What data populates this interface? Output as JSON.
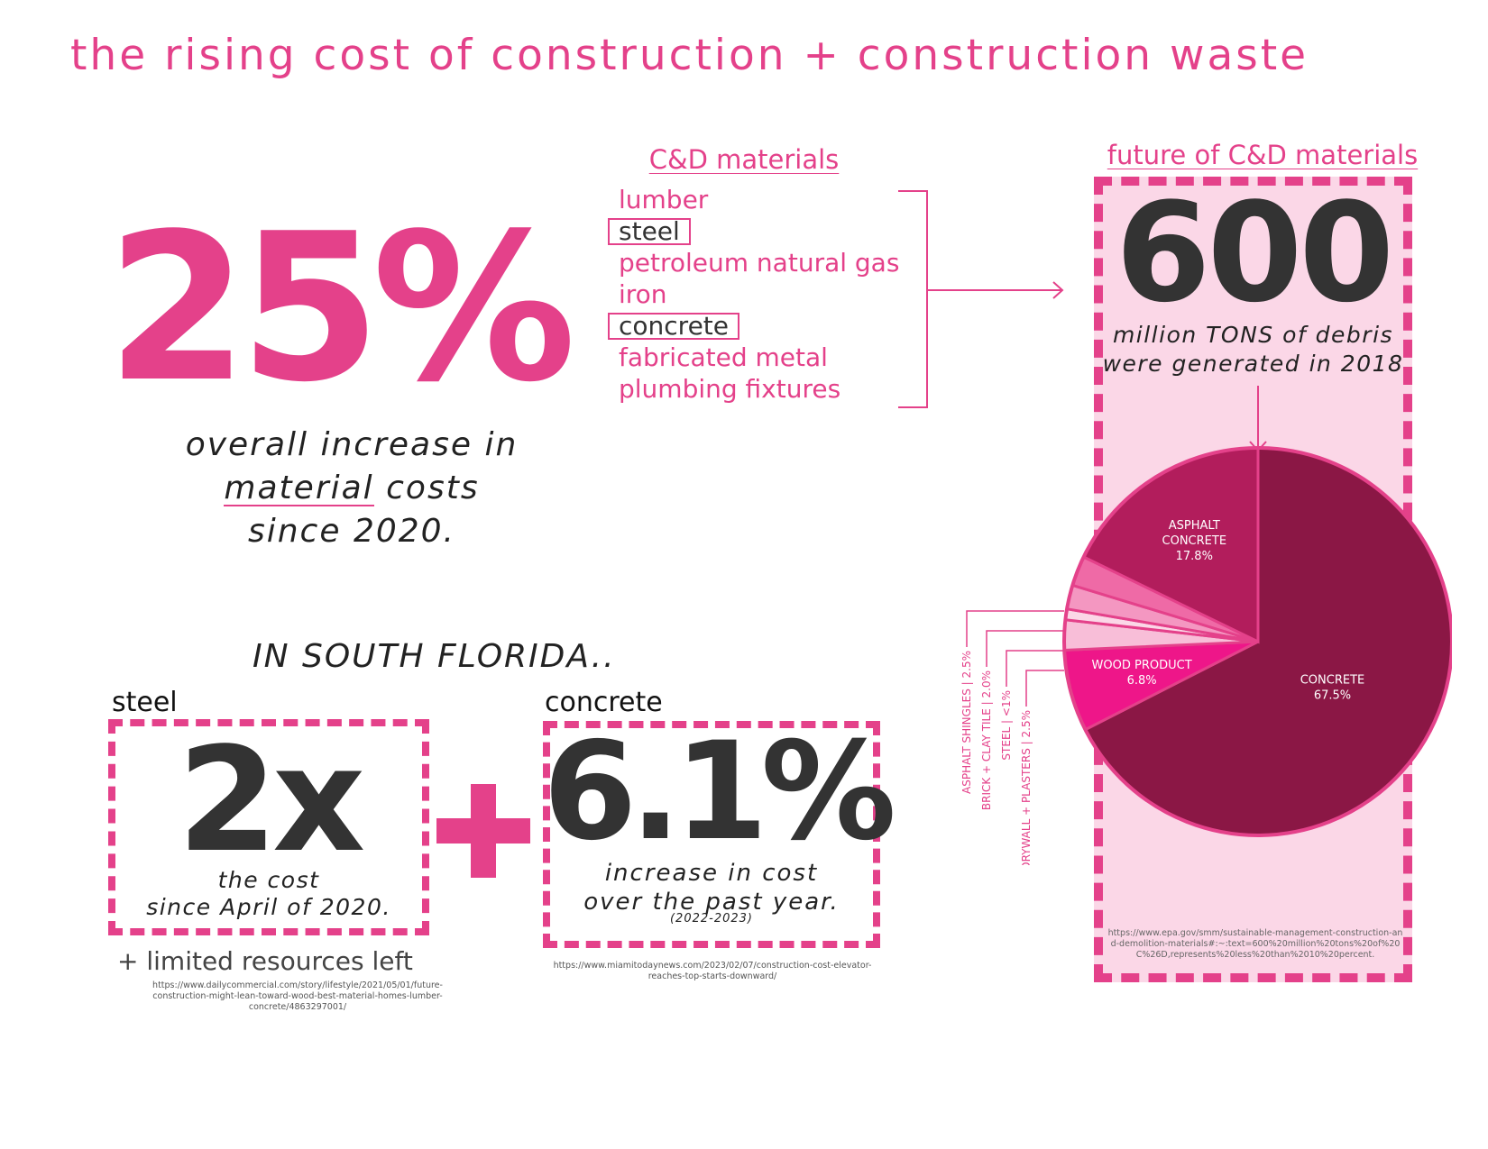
{
  "title": "the rising cost of construction + construction waste",
  "headline": {
    "value": "25%",
    "caption_line1": "overall increase in",
    "caption_word": "material",
    "caption_line2_rest": " costs",
    "caption_line3": "since 2020."
  },
  "cd_materials": {
    "title": "C&D materials",
    "items": [
      {
        "label": "lumber",
        "highlight": false
      },
      {
        "label": "steel",
        "highlight": true
      },
      {
        "label": "petroleum natural gas",
        "highlight": false
      },
      {
        "label": "iron",
        "highlight": false
      },
      {
        "label": "concrete",
        "highlight": true
      },
      {
        "label": "fabricated metal",
        "highlight": false
      },
      {
        "label": "plumbing fixtures",
        "highlight": false
      }
    ]
  },
  "future": {
    "title": "future of C&D materials",
    "value": "600",
    "caption_line1": "million TONS of debris",
    "caption_line2": "were generated in 2018",
    "source": "https://www.epa.gov/smm/sustainable-management-construction-and-demolition-materials#:~:text=600%20million%20tons%20of%20C%26D,represents%20less%20than%2010%20percent."
  },
  "south_florida": {
    "heading": "IN SOUTH FLORIDA..",
    "steel": {
      "label": "steel",
      "value": "2x",
      "caption_line1": "the cost",
      "caption_line2": "since April of 2020.",
      "extra": "+  limited resources left",
      "source": "https://www.dailycommercial.com/story/lifestyle/2021/05/01/future-construction-might-lean-toward-wood-best-material-homes-lumber-concrete/4863297001/"
    },
    "concrete": {
      "label": "concrete",
      "value": "6.1%",
      "caption_line1": "increase in cost",
      "caption_line2": "over the past year.",
      "years": "(2022-2023)",
      "source": "https://www.miamitodaynews.com/2023/02/07/construction-cost-elevator-reaches-top-starts-downward/"
    }
  },
  "colors": {
    "accent": "#e4418a",
    "dark": "#333333",
    "box_fill": "#fbd7e7"
  },
  "chart_data": {
    "type": "pie",
    "title": "",
    "slices": [
      {
        "label": "CONCRETE",
        "value": 67.5,
        "display": "67.5%",
        "color": "#8b1745",
        "labeled": true
      },
      {
        "label": "WOOD PRODUCT",
        "value": 6.8,
        "display": "6.8%",
        "color": "#ee1689",
        "labeled": true
      },
      {
        "label": "DRYWALL + PLASTERS",
        "value": 2.5,
        "display": "2.5%",
        "color": "#f8bed8",
        "labeled": false
      },
      {
        "label": "STEEL",
        "value": 0.9,
        "display": "<1%",
        "color": "#fbd7e7",
        "labeled": false
      },
      {
        "label": "BRICK + CLAY TILE",
        "value": 2.0,
        "display": "2.0%",
        "color": "#f497c1",
        "labeled": false
      },
      {
        "label": "ASPHALT SHINGLES",
        "value": 2.5,
        "display": "2.5%",
        "color": "#ef6aa6",
        "labeled": false
      },
      {
        "label": "ASPHALT CONCRETE",
        "value": 17.8,
        "display": "17.8%",
        "color": "#b21d5c",
        "labeled": true
      }
    ],
    "callouts": [
      "ASPHALT SHINGLES | 2.5%",
      "BRICK + CLAY TILE | 2.0%",
      "STEEL | <1%",
      "DRYWALL + PLASTERS | 2.5%"
    ]
  }
}
